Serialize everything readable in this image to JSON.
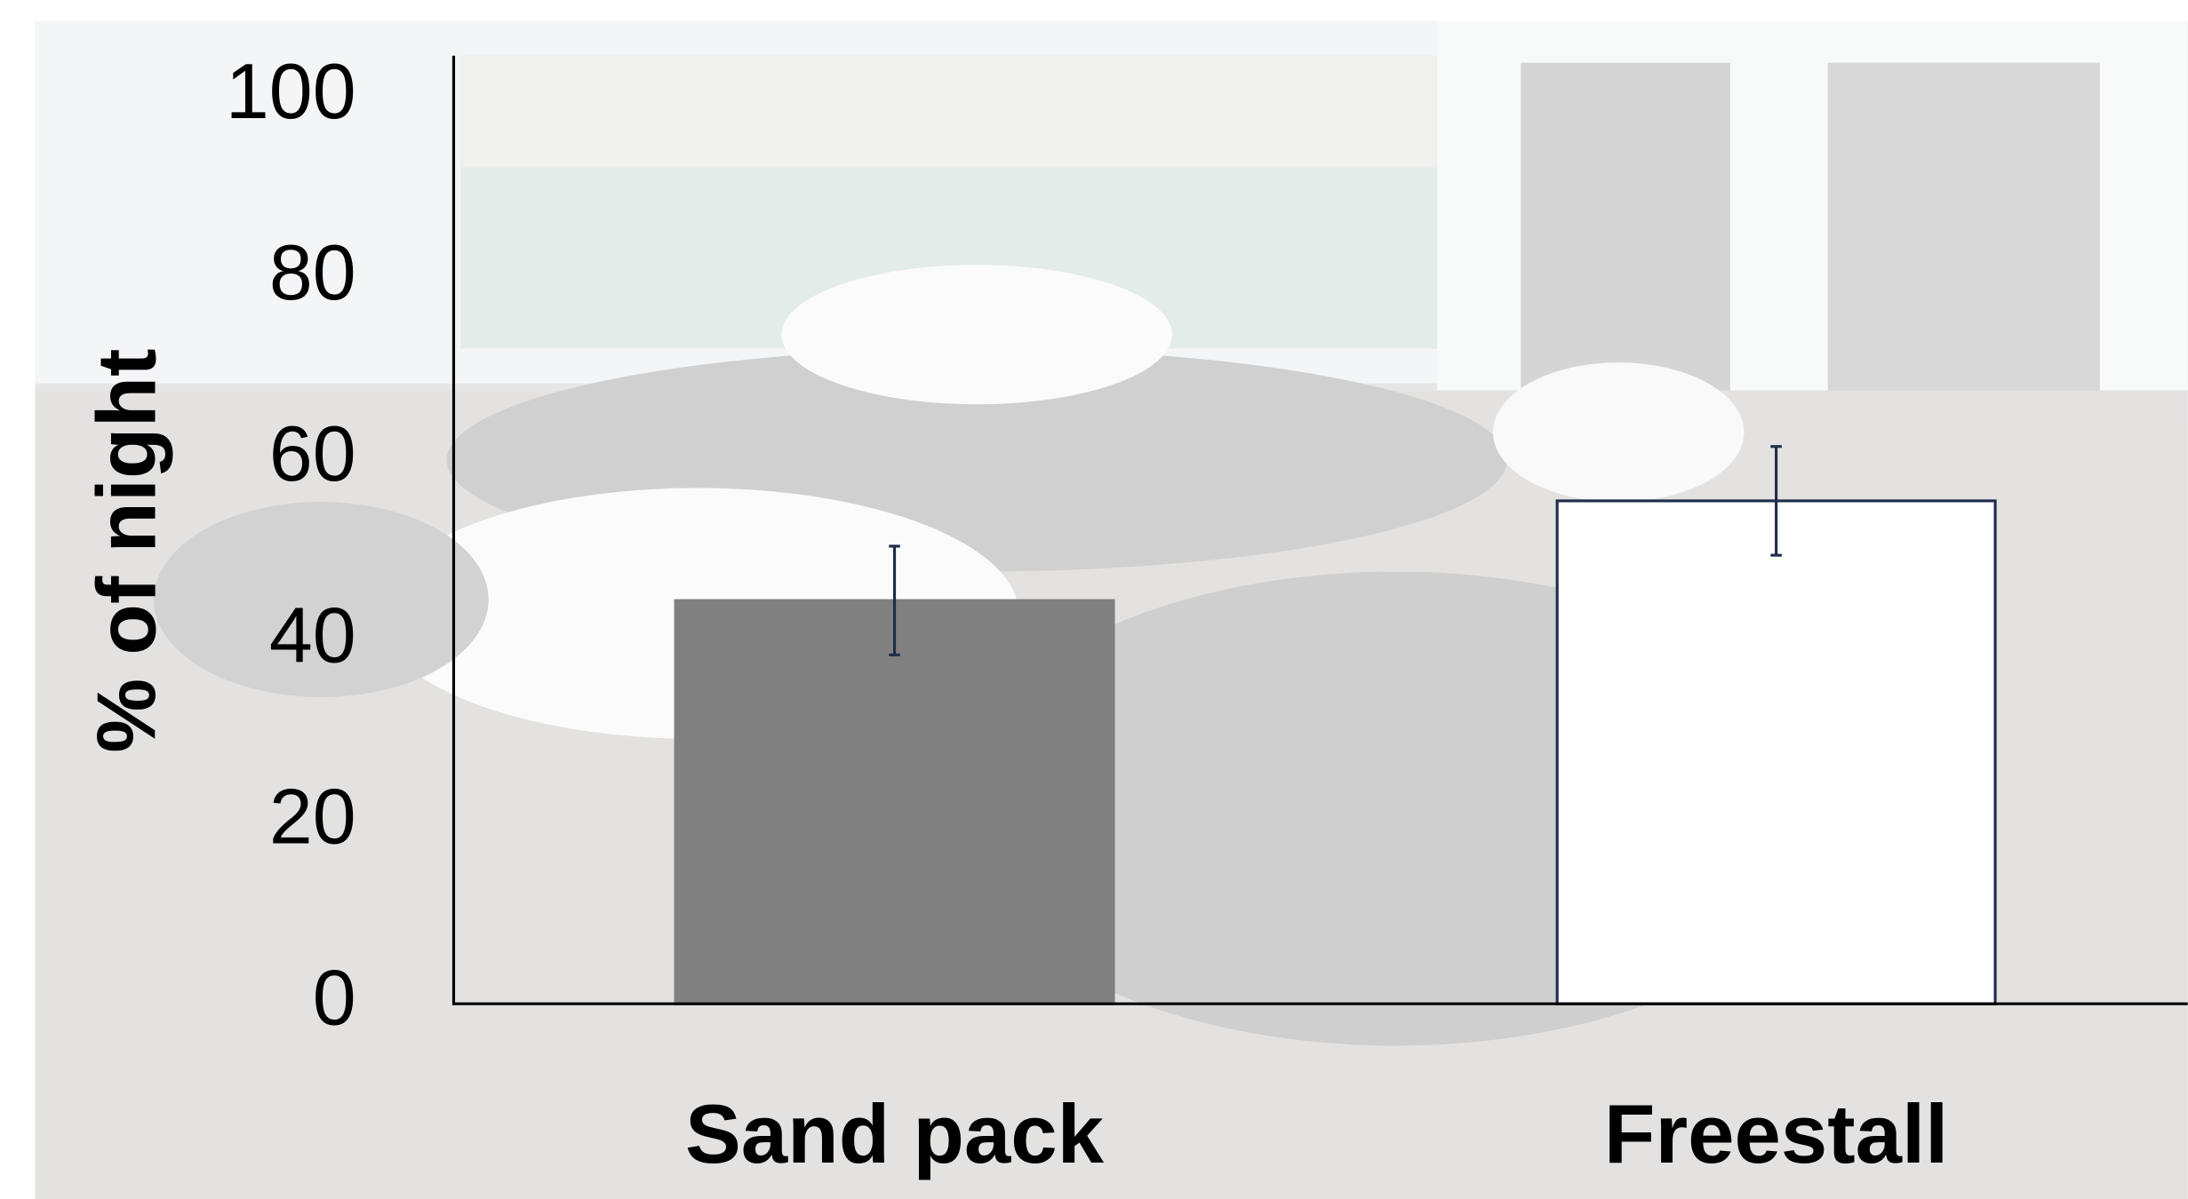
{
  "chart_data": {
    "type": "bar",
    "categories": [
      "Sand pack",
      "Freestall"
    ],
    "values": [
      44.5,
      55.5
    ],
    "errors": [
      6,
      6
    ],
    "colors": [
      "#808080",
      "#ffffff"
    ],
    "edgecolors": [
      "#808080",
      "#1f2d4a"
    ],
    "error_color": "#1f2d4a",
    "ylabel": "% of night",
    "ylim": [
      0,
      100
    ],
    "yticks": [
      0,
      20,
      40,
      60,
      80,
      100
    ],
    "grid": false
  }
}
